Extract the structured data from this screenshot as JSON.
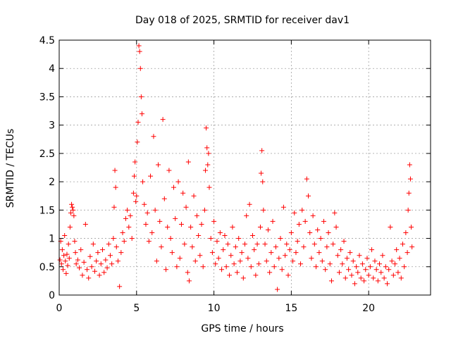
{
  "chart_data": {
    "type": "scatter",
    "title": "Day 018 of 2025, SRMTID for receiver dav1",
    "xlabel": "GPS time / hours",
    "ylabel": "SRMTID / TECUs",
    "xlim": [
      0,
      24
    ],
    "ylim": [
      0,
      4.5
    ],
    "xticks": [
      0,
      5,
      10,
      15,
      20
    ],
    "xtick_labels": [
      "0",
      "5",
      "10",
      "15",
      "20"
    ],
    "yticks": [
      0,
      0.5,
      1,
      1.5,
      2,
      2.5,
      3,
      3.5,
      4,
      4.5
    ],
    "ytick_labels": [
      "0",
      "0.5",
      "1",
      "1.5",
      "2",
      "2.5",
      "3",
      "3.5",
      "4",
      "4.5"
    ],
    "grid": true,
    "marker": "+",
    "color": "#ff0000",
    "series": [
      {
        "name": "SRMTID",
        "points": [
          [
            0.05,
            0.62
          ],
          [
            0.1,
            0.95
          ],
          [
            0.15,
            0.55
          ],
          [
            0.2,
            0.8
          ],
          [
            0.25,
            0.45
          ],
          [
            0.3,
            0.7
          ],
          [
            0.35,
            1.05
          ],
          [
            0.4,
            0.6
          ],
          [
            0.45,
            0.38
          ],
          [
            0.5,
            0.72
          ],
          [
            0.55,
            0.52
          ],
          [
            0.6,
            0.9
          ],
          [
            0.65,
            0.65
          ],
          [
            0.7,
            1.2
          ],
          [
            0.75,
            1.45
          ],
          [
            0.8,
            1.6
          ],
          [
            0.85,
            1.55
          ],
          [
            0.9,
            1.5
          ],
          [
            0.95,
            1.4
          ],
          [
            1.0,
            0.95
          ],
          [
            1.05,
            0.75
          ],
          [
            1.1,
            0.55
          ],
          [
            1.2,
            0.62
          ],
          [
            1.3,
            0.48
          ],
          [
            1.4,
            0.8
          ],
          [
            1.5,
            0.35
          ],
          [
            1.6,
            0.58
          ],
          [
            1.7,
            1.25
          ],
          [
            1.8,
            0.45
          ],
          [
            1.9,
            0.3
          ],
          [
            2.0,
            0.68
          ],
          [
            2.1,
            0.5
          ],
          [
            2.2,
            0.9
          ],
          [
            2.3,
            0.42
          ],
          [
            2.4,
            0.6
          ],
          [
            2.5,
            0.75
          ],
          [
            2.6,
            0.35
          ],
          [
            2.7,
            0.55
          ],
          [
            2.8,
            0.8
          ],
          [
            2.9,
            0.4
          ],
          [
            3.0,
            0.62
          ],
          [
            3.1,
            0.48
          ],
          [
            3.2,
            0.9
          ],
          [
            3.3,
            0.7
          ],
          [
            3.4,
            0.55
          ],
          [
            3.5,
            1.0
          ],
          [
            3.55,
            1.55
          ],
          [
            3.6,
            2.2
          ],
          [
            3.65,
            1.9
          ],
          [
            3.7,
            0.85
          ],
          [
            3.8,
            0.6
          ],
          [
            3.9,
            0.15
          ],
          [
            4.0,
            0.75
          ],
          [
            4.1,
            1.1
          ],
          [
            4.2,
            0.95
          ],
          [
            4.3,
            1.35
          ],
          [
            4.4,
            1.5
          ],
          [
            4.5,
            1.2
          ],
          [
            4.6,
            1.4
          ],
          [
            4.7,
            1.0
          ],
          [
            4.8,
            1.8
          ],
          [
            4.85,
            2.1
          ],
          [
            4.9,
            2.35
          ],
          [
            4.95,
            1.65
          ],
          [
            5.0,
            1.75
          ],
          [
            5.05,
            2.7
          ],
          [
            5.1,
            3.05
          ],
          [
            5.15,
            4.4
          ],
          [
            5.2,
            4.3
          ],
          [
            5.25,
            4.0
          ],
          [
            5.3,
            3.5
          ],
          [
            5.35,
            3.2
          ],
          [
            5.4,
            2.0
          ],
          [
            5.5,
            1.6
          ],
          [
            5.6,
            1.25
          ],
          [
            5.7,
            1.45
          ],
          [
            5.8,
            0.95
          ],
          [
            5.9,
            2.1
          ],
          [
            6.0,
            1.1
          ],
          [
            6.1,
            2.8
          ],
          [
            6.2,
            1.5
          ],
          [
            6.3,
            0.6
          ],
          [
            6.4,
            2.3
          ],
          [
            6.5,
            1.3
          ],
          [
            6.6,
            0.85
          ],
          [
            6.7,
            3.1
          ],
          [
            6.8,
            1.7
          ],
          [
            6.9,
            0.45
          ],
          [
            7.0,
            1.2
          ],
          [
            7.1,
            2.2
          ],
          [
            7.2,
            1.0
          ],
          [
            7.3,
            0.75
          ],
          [
            7.4,
            1.9
          ],
          [
            7.5,
            1.35
          ],
          [
            7.6,
            0.5
          ],
          [
            7.7,
            2.0
          ],
          [
            7.8,
            0.65
          ],
          [
            7.9,
            1.25
          ],
          [
            8.0,
            1.8
          ],
          [
            8.1,
            0.9
          ],
          [
            8.2,
            1.55
          ],
          [
            8.3,
            0.4
          ],
          [
            8.35,
            2.35
          ],
          [
            8.4,
            0.25
          ],
          [
            8.5,
            1.2
          ],
          [
            8.6,
            0.85
          ],
          [
            8.7,
            1.75
          ],
          [
            8.8,
            0.6
          ],
          [
            8.9,
            1.4
          ],
          [
            9.0,
            1.05
          ],
          [
            9.1,
            0.7
          ],
          [
            9.2,
            1.25
          ],
          [
            9.3,
            0.5
          ],
          [
            9.4,
            1.5
          ],
          [
            9.45,
            2.2
          ],
          [
            9.5,
            2.95
          ],
          [
            9.55,
            2.6
          ],
          [
            9.6,
            2.3
          ],
          [
            9.65,
            2.5
          ],
          [
            9.7,
            1.9
          ],
          [
            9.8,
            1.0
          ],
          [
            9.9,
            0.75
          ],
          [
            10.0,
            1.3
          ],
          [
            10.1,
            0.55
          ],
          [
            10.2,
            0.95
          ],
          [
            10.3,
            0.65
          ],
          [
            10.4,
            1.1
          ],
          [
            10.5,
            0.45
          ],
          [
            10.6,
            0.8
          ],
          [
            10.7,
            1.05
          ],
          [
            10.8,
            0.5
          ],
          [
            10.9,
            0.9
          ],
          [
            11.0,
            0.35
          ],
          [
            11.1,
            0.7
          ],
          [
            11.2,
            1.2
          ],
          [
            11.3,
            0.55
          ],
          [
            11.4,
            0.85
          ],
          [
            11.5,
            0.4
          ],
          [
            11.6,
            1.0
          ],
          [
            11.7,
            0.6
          ],
          [
            11.8,
            0.75
          ],
          [
            11.9,
            0.3
          ],
          [
            12.0,
            0.9
          ],
          [
            12.1,
            1.4
          ],
          [
            12.2,
            0.65
          ],
          [
            12.3,
            1.6
          ],
          [
            12.4,
            0.5
          ],
          [
            12.5,
            1.05
          ],
          [
            12.6,
            0.8
          ],
          [
            12.7,
            0.35
          ],
          [
            12.8,
            0.9
          ],
          [
            12.9,
            0.55
          ],
          [
            13.0,
            1.2
          ],
          [
            13.05,
            2.15
          ],
          [
            13.1,
            2.55
          ],
          [
            13.15,
            2.0
          ],
          [
            13.2,
            1.5
          ],
          [
            13.3,
            0.9
          ],
          [
            13.4,
            0.6
          ],
          [
            13.5,
            1.15
          ],
          [
            13.6,
            0.4
          ],
          [
            13.7,
            0.75
          ],
          [
            13.8,
            1.3
          ],
          [
            13.9,
            0.5
          ],
          [
            14.0,
            0.85
          ],
          [
            14.1,
            0.1
          ],
          [
            14.2,
            0.65
          ],
          [
            14.3,
            1.0
          ],
          [
            14.4,
            0.45
          ],
          [
            14.5,
            1.55
          ],
          [
            14.6,
            0.7
          ],
          [
            14.7,
            0.9
          ],
          [
            14.8,
            0.35
          ],
          [
            14.9,
            0.8
          ],
          [
            15.0,
            1.1
          ],
          [
            15.1,
            0.6
          ],
          [
            15.2,
            1.45
          ],
          [
            15.3,
            0.75
          ],
          [
            15.4,
            0.95
          ],
          [
            15.5,
            1.25
          ],
          [
            15.6,
            0.55
          ],
          [
            15.7,
            1.5
          ],
          [
            15.8,
            0.85
          ],
          [
            15.9,
            1.3
          ],
          [
            16.0,
            2.05
          ],
          [
            16.1,
            1.75
          ],
          [
            16.2,
            1.1
          ],
          [
            16.3,
            0.65
          ],
          [
            16.4,
            1.4
          ],
          [
            16.5,
            0.9
          ],
          [
            16.6,
            0.5
          ],
          [
            16.7,
            1.15
          ],
          [
            16.8,
            0.75
          ],
          [
            16.9,
            1.0
          ],
          [
            17.0,
            0.6
          ],
          [
            17.1,
            1.3
          ],
          [
            17.2,
            0.45
          ],
          [
            17.3,
            0.85
          ],
          [
            17.4,
            1.1
          ],
          [
            17.5,
            0.55
          ],
          [
            17.6,
            0.25
          ],
          [
            17.7,
            0.9
          ],
          [
            17.8,
            1.45
          ],
          [
            17.9,
            1.2
          ],
          [
            18.0,
            0.7
          ],
          [
            18.1,
            0.4
          ],
          [
            18.2,
            0.8
          ],
          [
            18.3,
            0.55
          ],
          [
            18.4,
            0.95
          ],
          [
            18.5,
            0.3
          ],
          [
            18.6,
            0.65
          ],
          [
            18.7,
            0.45
          ],
          [
            18.8,
            0.75
          ],
          [
            18.9,
            0.35
          ],
          [
            19.0,
            0.6
          ],
          [
            19.1,
            0.2
          ],
          [
            19.2,
            0.5
          ],
          [
            19.3,
            0.4
          ],
          [
            19.4,
            0.7
          ],
          [
            19.5,
            0.3
          ],
          [
            19.6,
            0.55
          ],
          [
            19.7,
            0.25
          ],
          [
            19.8,
            0.45
          ],
          [
            19.9,
            0.65
          ],
          [
            20.0,
            0.35
          ],
          [
            20.1,
            0.5
          ],
          [
            20.2,
            0.8
          ],
          [
            20.3,
            0.3
          ],
          [
            20.4,
            0.6
          ],
          [
            20.5,
            0.45
          ],
          [
            20.6,
            0.25
          ],
          [
            20.7,
            0.55
          ],
          [
            20.8,
            0.4
          ],
          [
            20.9,
            0.7
          ],
          [
            21.0,
            0.3
          ],
          [
            21.1,
            0.5
          ],
          [
            21.2,
            0.2
          ],
          [
            21.3,
            0.45
          ],
          [
            21.4,
            1.2
          ],
          [
            21.5,
            0.6
          ],
          [
            21.6,
            0.35
          ],
          [
            21.7,
            0.55
          ],
          [
            21.8,
            0.8
          ],
          [
            21.9,
            0.4
          ],
          [
            22.0,
            0.65
          ],
          [
            22.1,
            0.3
          ],
          [
            22.2,
            0.9
          ],
          [
            22.3,
            0.5
          ],
          [
            22.4,
            1.1
          ],
          [
            22.5,
            0.75
          ],
          [
            22.55,
            1.5
          ],
          [
            22.6,
            1.8
          ],
          [
            22.65,
            2.3
          ],
          [
            22.7,
            2.05
          ],
          [
            22.75,
            1.2
          ],
          [
            22.8,
            0.85
          ]
        ]
      }
    ]
  }
}
